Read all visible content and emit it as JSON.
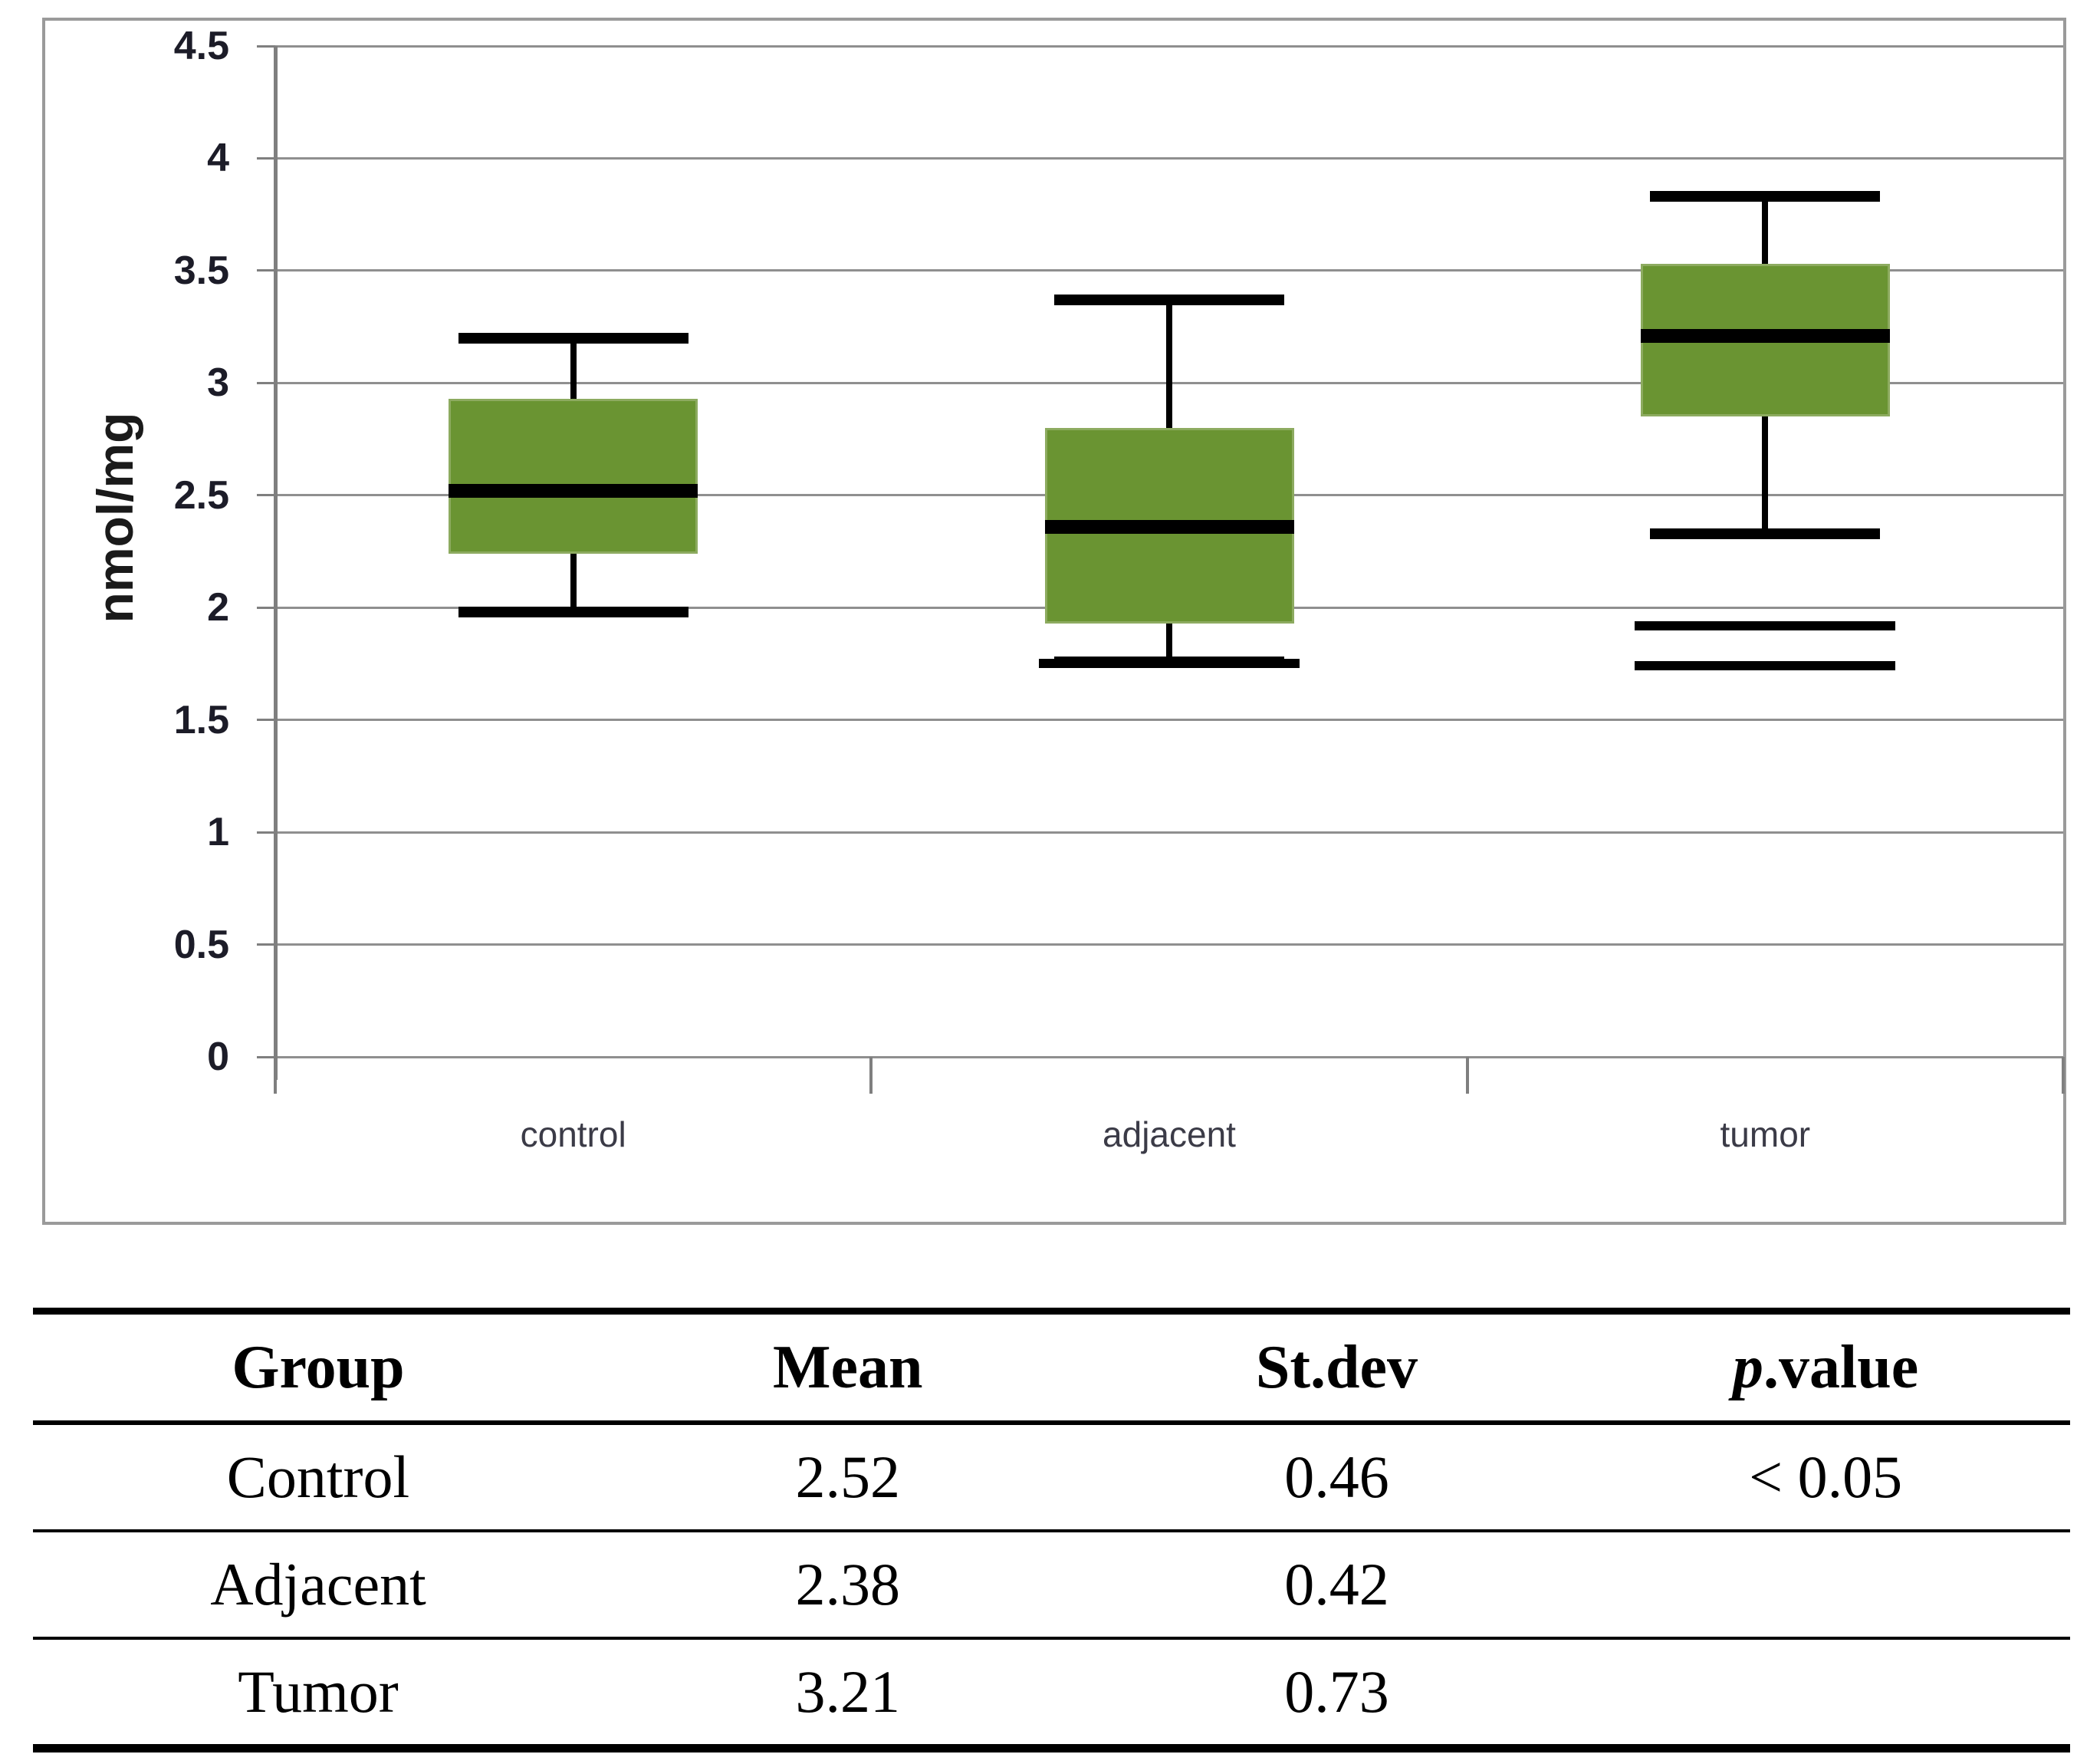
{
  "chart_data": {
    "type": "boxplot",
    "title": "",
    "xlabel": "",
    "ylabel": "nmol/mg",
    "ylim": [
      0,
      4.5
    ],
    "ytick_step": 0.5,
    "ytick_labels": [
      "4.5",
      "4",
      "3.5",
      "3",
      "2.5",
      "2",
      "1.5",
      "1",
      "0.5",
      "0"
    ],
    "grid": true,
    "legend": "none",
    "categories": [
      "control",
      "adjacent",
      "tumor"
    ],
    "series": [
      {
        "name": "control",
        "whisker_low": 1.98,
        "q1": 2.24,
        "median": 2.52,
        "q3": 2.93,
        "whisker_high": 3.2,
        "outliers": []
      },
      {
        "name": "adjacent",
        "whisker_low": 1.76,
        "q1": 1.93,
        "median": 2.36,
        "q3": 2.8,
        "whisker_high": 3.37,
        "outliers": [
          1.75
        ]
      },
      {
        "name": "tumor",
        "whisker_low": 2.33,
        "q1": 2.85,
        "median": 3.21,
        "q3": 3.53,
        "whisker_high": 3.83,
        "outliers": [
          1.92,
          1.74
        ]
      }
    ],
    "colors": {
      "box_fill": "#6a9432",
      "box_edge": "#8dab60",
      "line": "#000000",
      "grid": "#8f8f8f",
      "axis": "#7f7f7f",
      "panel_border": "#9a9a9a",
      "tick_label": "#1c1c28",
      "category_label": "#3b3b47"
    }
  },
  "table": {
    "headers": [
      {
        "label": "Group"
      },
      {
        "label": "Mean"
      },
      {
        "label": "St.dev"
      },
      {
        "italic": "p",
        "label": ".value"
      }
    ],
    "rows": [
      {
        "group": "Control",
        "mean": "2.52",
        "stdev": "0.46",
        "pvalue": "< 0.05"
      },
      {
        "group": "Adjacent",
        "mean": "2.38",
        "stdev": "0.42",
        "pvalue": ""
      },
      {
        "group": "Tumor",
        "mean": "3.21",
        "stdev": "0.73",
        "pvalue": ""
      }
    ]
  }
}
